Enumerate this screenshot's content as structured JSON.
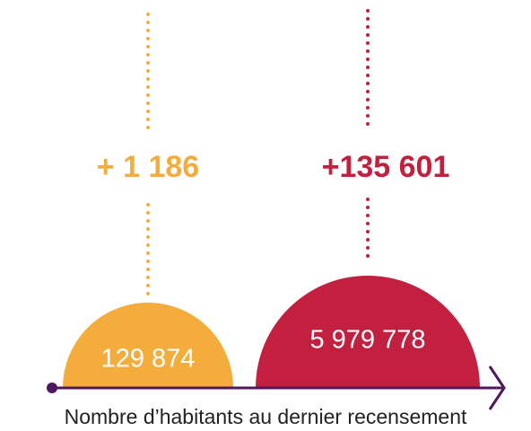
{
  "items": [
    {
      "change": "+ 1 186",
      "population": "129 874"
    },
    {
      "change": "+135 601",
      "population": "5 979 778"
    }
  ],
  "caption": "Nombre d’habitants au dernier recensement"
}
